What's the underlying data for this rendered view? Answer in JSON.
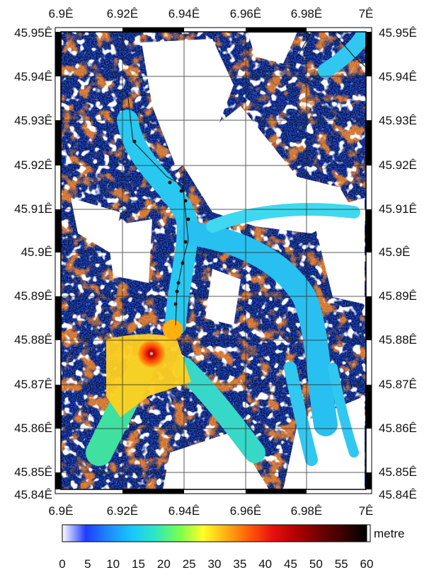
{
  "map": {
    "lon_ticks": [
      "6.9Ê",
      "6.92Ê",
      "6.94Ê",
      "6.96Ê",
      "6.98Ê",
      "7Ê"
    ],
    "lat_ticks": [
      "45.95Ê",
      "45.94Ê",
      "45.93Ê",
      "45.92Ê",
      "45.91Ê",
      "45.9Ê",
      "45.89Ê",
      "45.88Ê",
      "45.87Ê",
      "45.86Ê",
      "45.85Ê",
      "45.84Ê"
    ],
    "colorbar": {
      "unit": "metre",
      "ticks": [
        "0",
        "5",
        "10",
        "15",
        "20",
        "25",
        "30",
        "35",
        "40",
        "45",
        "50",
        "55",
        "60"
      ],
      "colors": [
        "#ffffff",
        "#1e3cff",
        "#1e8cff",
        "#18c8ff",
        "#30e8c0",
        "#78ff50",
        "#ffff28",
        "#ffb010",
        "#ff5a08",
        "#e61010",
        "#b00000",
        "#700000",
        "#3a0000",
        "#000000"
      ]
    }
  }
}
